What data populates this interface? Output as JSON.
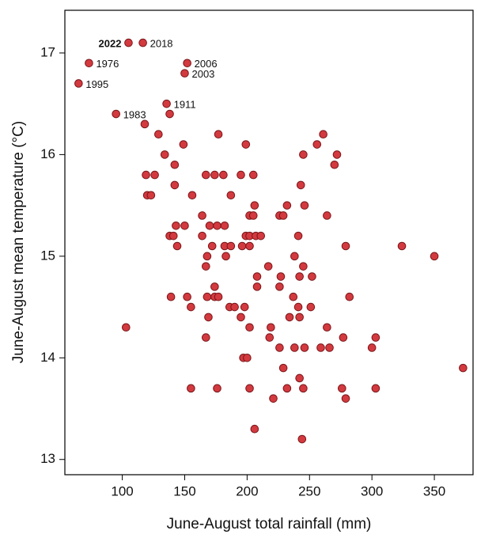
{
  "chart_data": {
    "type": "scatter",
    "x_label": "June-August total rainfall (mm)",
    "y_label": "June-August mean temperature (°C)",
    "xlim": [
      54,
      381
    ],
    "ylim": [
      12.85,
      17.42
    ],
    "xticks": [
      100,
      150,
      200,
      250,
      300,
      350
    ],
    "yticks": [
      13,
      14,
      15,
      16,
      17
    ],
    "series": [
      {
        "color": "#d23a3f",
        "x": [
          105,
          116.5,
          73.3,
          65,
          152,
          150,
          135.5,
          95,
          138,
          118,
          129,
          177,
          261,
          149,
          199,
          256,
          134,
          245,
          272,
          270,
          142,
          119,
          126,
          167,
          174,
          181,
          195,
          205,
          142,
          243,
          120,
          123,
          156,
          187,
          206,
          232,
          246,
          164,
          202,
          205,
          226,
          229,
          264,
          143,
          150,
          170,
          176,
          182,
          138,
          141,
          164,
          199,
          202,
          207,
          211,
          241,
          144,
          172,
          182,
          187,
          196,
          202,
          279,
          324,
          168,
          183,
          238,
          350,
          217,
          167,
          245,
          208,
          227,
          242,
          252,
          174,
          208,
          226,
          139,
          152,
          168,
          174,
          177,
          237,
          282,
          155,
          186,
          190,
          198,
          241,
          251,
          169,
          195,
          234,
          242,
          103,
          202,
          219,
          264,
          167,
          218,
          277,
          303,
          226,
          238,
          246,
          259,
          266,
          300,
          197,
          200,
          229,
          373,
          242,
          155,
          176,
          202,
          232,
          245,
          276,
          303,
          221,
          279,
          206,
          244
        ],
        "values": [
          17.1,
          17.1,
          16.9,
          16.7,
          16.9,
          16.8,
          16.5,
          16.4,
          16.4,
          16.3,
          16.2,
          16.2,
          16.2,
          16.1,
          16.1,
          16.1,
          16.0,
          16.0,
          16.0,
          15.9,
          15.9,
          15.8,
          15.8,
          15.8,
          15.8,
          15.8,
          15.8,
          15.8,
          15.7,
          15.7,
          15.6,
          15.6,
          15.6,
          15.6,
          15.5,
          15.5,
          15.5,
          15.4,
          15.4,
          15.4,
          15.4,
          15.4,
          15.4,
          15.3,
          15.3,
          15.3,
          15.3,
          15.3,
          15.2,
          15.2,
          15.2,
          15.2,
          15.2,
          15.2,
          15.2,
          15.2,
          15.1,
          15.1,
          15.1,
          15.1,
          15.1,
          15.1,
          15.1,
          15.1,
          15.0,
          15.0,
          15.0,
          15.0,
          14.9,
          14.9,
          14.9,
          14.8,
          14.8,
          14.8,
          14.8,
          14.7,
          14.7,
          14.7,
          14.6,
          14.6,
          14.6,
          14.6,
          14.6,
          14.6,
          14.6,
          14.5,
          14.5,
          14.5,
          14.5,
          14.5,
          14.5,
          14.4,
          14.4,
          14.4,
          14.4,
          14.3,
          14.3,
          14.3,
          14.3,
          14.2,
          14.2,
          14.2,
          14.2,
          14.1,
          14.1,
          14.1,
          14.1,
          14.1,
          14.1,
          14.0,
          14.0,
          13.9,
          13.9,
          13.8,
          13.7,
          13.7,
          13.7,
          13.7,
          13.7,
          13.7,
          13.7,
          13.6,
          13.6,
          13.3,
          13.2
        ]
      }
    ],
    "annotations": [
      {
        "text": "2022",
        "point": 0,
        "bold": true,
        "position": "left"
      },
      {
        "text": "2018",
        "point": 1
      },
      {
        "text": "1976",
        "point": 2
      },
      {
        "text": "1995",
        "point": 3
      },
      {
        "text": "2006",
        "point": 4
      },
      {
        "text": "2003",
        "point": 5
      },
      {
        "text": "1911",
        "point": 6
      },
      {
        "text": "1983",
        "point": 7
      }
    ]
  }
}
